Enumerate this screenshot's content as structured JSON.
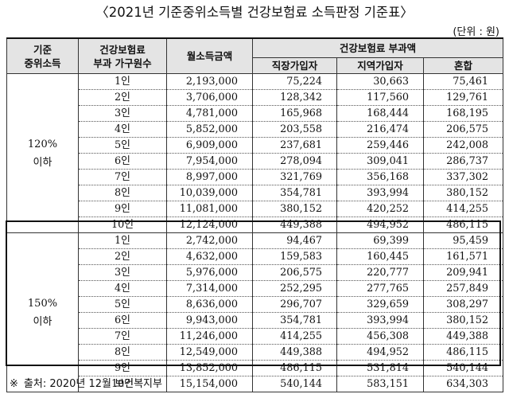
{
  "title": "〈2021년 기준중위소득별 건강보험료 소득판정 기준표〉",
  "unit": "(단위 : 원)",
  "headers": {
    "category_line1": "기준",
    "category_line2": "중위소득",
    "household_line1": "건강보험료",
    "household_line2": "부과 가구원수",
    "income": "월소득금액",
    "premium_group": "건강보험료 부과액",
    "workplace": "직장가입자",
    "regional": "지역가입자",
    "mixed": "혼합"
  },
  "groups": [
    {
      "category_pct": "120%",
      "category_label": "이하",
      "rows": [
        {
          "household": "1인",
          "income": "2,193,000",
          "workplace": "75,224",
          "regional": "30,663",
          "mixed": "75,461"
        },
        {
          "household": "2인",
          "income": "3,706,000",
          "workplace": "128,342",
          "regional": "117,560",
          "mixed": "129,761"
        },
        {
          "household": "3인",
          "income": "4,781,000",
          "workplace": "165,968",
          "regional": "168,444",
          "mixed": "168,195"
        },
        {
          "household": "4인",
          "income": "5,852,000",
          "workplace": "203,558",
          "regional": "216,474",
          "mixed": "206,575"
        },
        {
          "household": "5인",
          "income": "6,909,000",
          "workplace": "237,681",
          "regional": "259,446",
          "mixed": "242,008"
        },
        {
          "household": "6인",
          "income": "7,954,000",
          "workplace": "278,094",
          "regional": "309,041",
          "mixed": "286,737"
        },
        {
          "household": "7인",
          "income": "8,997,000",
          "workplace": "321,769",
          "regional": "356,168",
          "mixed": "337,302"
        },
        {
          "household": "8인",
          "income": "10,039,000",
          "workplace": "354,781",
          "regional": "393,994",
          "mixed": "380,152"
        },
        {
          "household": "9인",
          "income": "11,081,000",
          "workplace": "380,152",
          "regional": "420,252",
          "mixed": "414,255"
        },
        {
          "household": "10인",
          "income": "12,124,000",
          "workplace": "449,388",
          "regional": "494,952",
          "mixed": "486,115"
        }
      ]
    },
    {
      "category_pct": "150%",
      "category_label": "이하",
      "rows": [
        {
          "household": "1인",
          "income": "2,742,000",
          "workplace": "94,467",
          "regional": "69,399",
          "mixed": "95,459"
        },
        {
          "household": "2인",
          "income": "4,632,000",
          "workplace": "159,583",
          "regional": "160,445",
          "mixed": "161,571"
        },
        {
          "household": "3인",
          "income": "5,976,000",
          "workplace": "206,575",
          "regional": "220,777",
          "mixed": "209,941"
        },
        {
          "household": "4인",
          "income": "7,314,000",
          "workplace": "252,295",
          "regional": "277,765",
          "mixed": "257,849"
        },
        {
          "household": "5인",
          "income": "8,636,000",
          "workplace": "296,707",
          "regional": "329,659",
          "mixed": "308,297"
        },
        {
          "household": "6인",
          "income": "9,943,000",
          "workplace": "354,781",
          "regional": "393,994",
          "mixed": "380,152"
        },
        {
          "household": "7인",
          "income": "11,246,000",
          "workplace": "414,255",
          "regional": "456,308",
          "mixed": "449,388"
        },
        {
          "household": "8인",
          "income": "12,549,000",
          "workplace": "449,388",
          "regional": "494,952",
          "mixed": "486,115"
        },
        {
          "household": "9인",
          "income": "13,852,000",
          "workplace": "486,115",
          "regional": "531,814",
          "mixed": "540,144"
        },
        {
          "household": "10인",
          "income": "15,154,000",
          "workplace": "540,144",
          "regional": "583,151",
          "mixed": "634,303"
        }
      ]
    }
  ],
  "source": {
    "mark": "※",
    "text": "출처: 2020년 12월 보건복지부"
  }
}
